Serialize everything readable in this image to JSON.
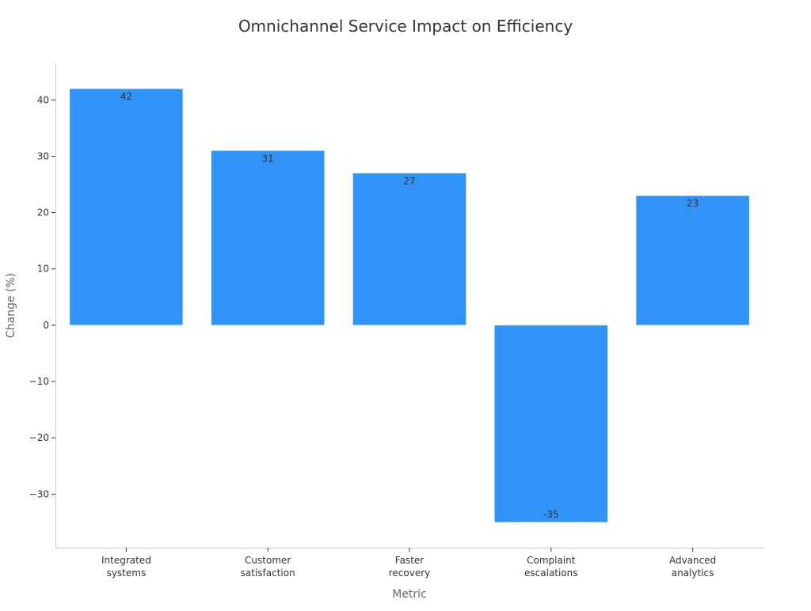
{
  "chart_data": {
    "type": "bar",
    "title": "Omnichannel Service Impact on Efficiency",
    "xlabel": "Metric",
    "ylabel": "Change (%)",
    "categories": [
      [
        "Integrated",
        "systems"
      ],
      [
        "Customer",
        "satisfaction"
      ],
      [
        "Faster",
        "recovery"
      ],
      [
        "Complaint",
        "escalations"
      ],
      [
        "Advanced",
        "analytics"
      ]
    ],
    "values": [
      42,
      31,
      27,
      -35,
      23
    ],
    "value_labels": [
      "42",
      "31",
      "27",
      "-35",
      "23"
    ],
    "ylim": [
      -39.5,
      46.5
    ],
    "yticks": [
      40,
      30,
      20,
      10,
      0,
      -10,
      -20,
      -30
    ],
    "ytick_labels": [
      "40",
      "30",
      "20",
      "10",
      "0",
      "−10",
      "−20",
      "−30"
    ],
    "grid": false,
    "bar_color": "#2f93f7"
  }
}
